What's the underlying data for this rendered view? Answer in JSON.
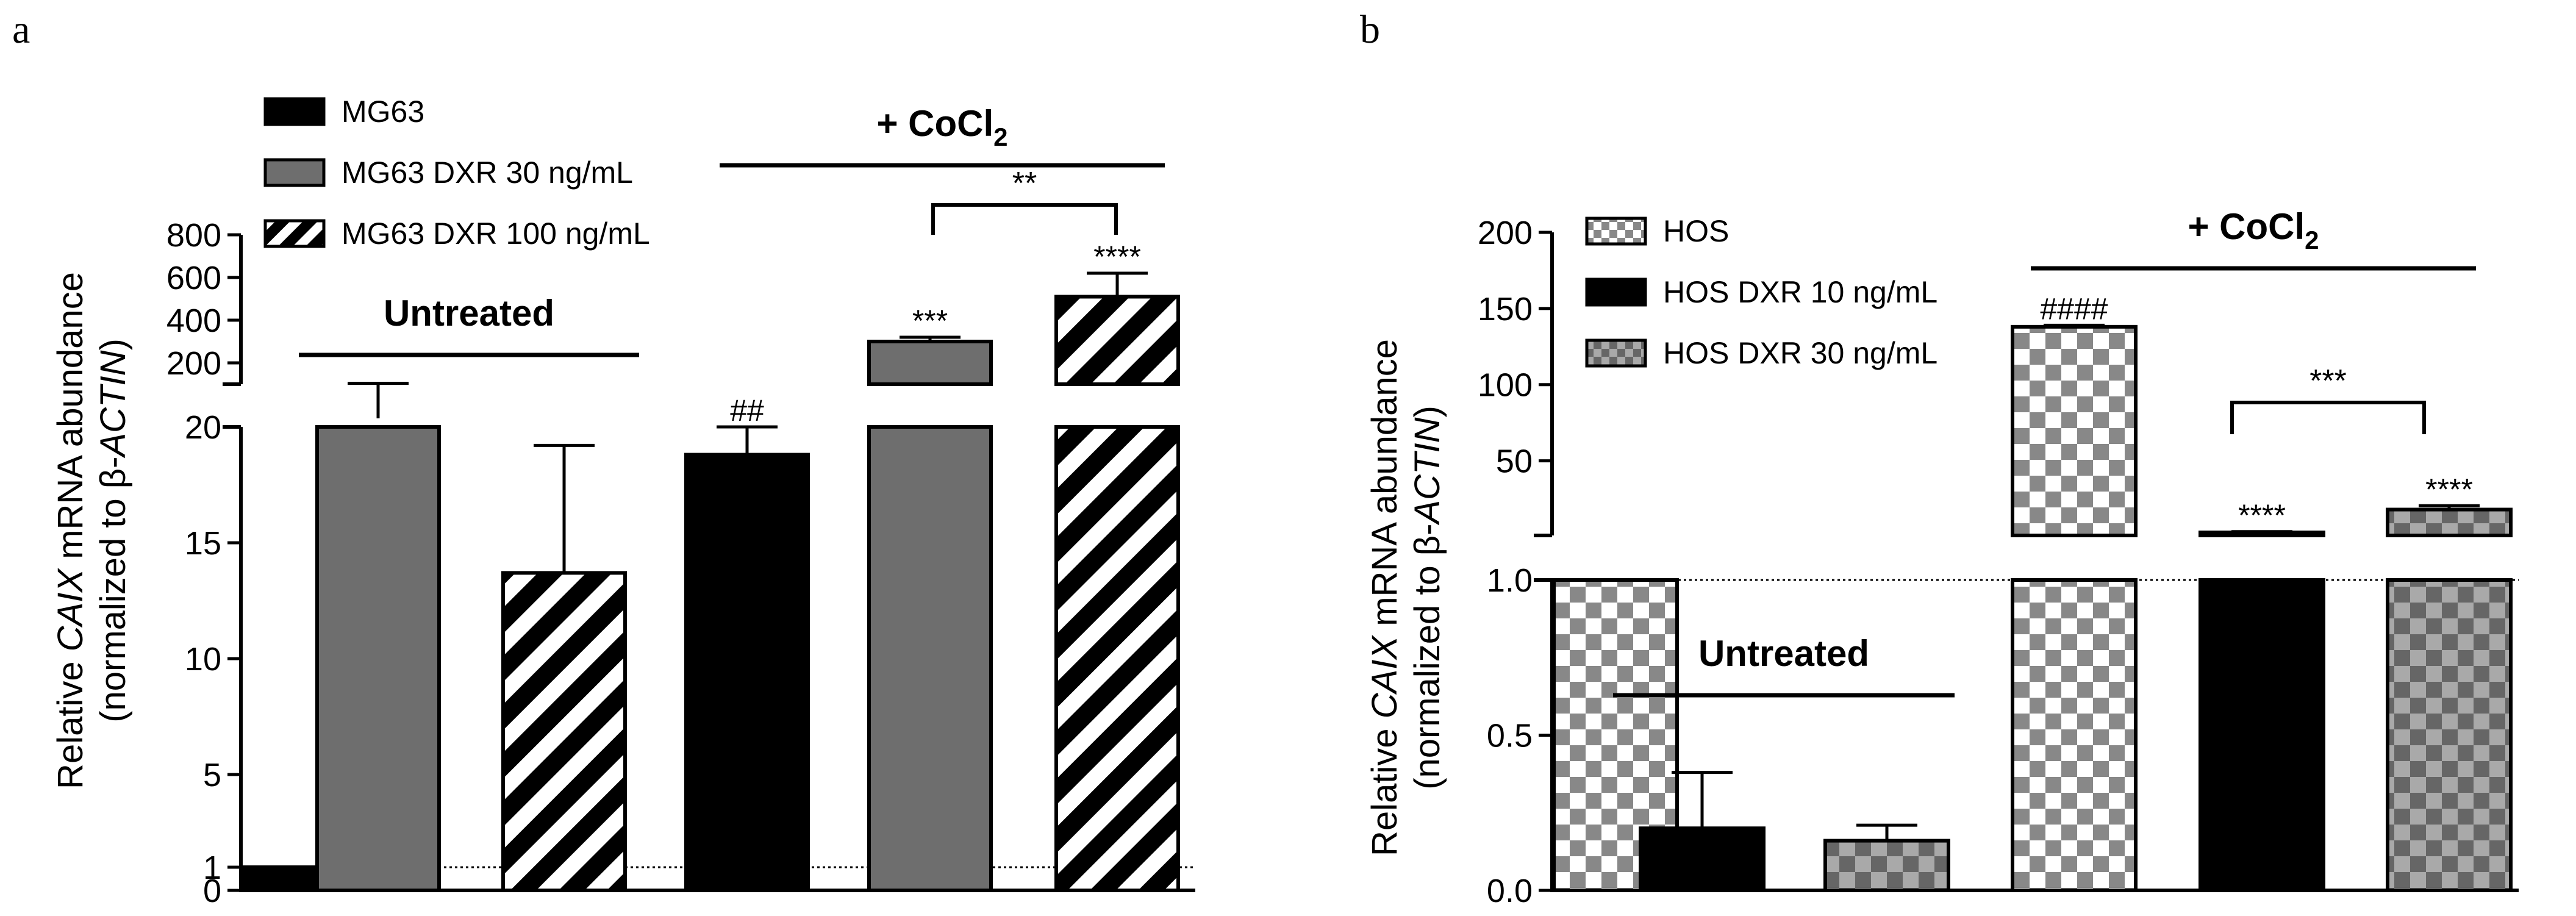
{
  "colors": {
    "black": "#000000",
    "gray": "#6e6e6e",
    "white": "#ffffff",
    "checkGray": "#888888"
  },
  "chart_data": [
    {
      "panel_label": "a",
      "type": "bar",
      "ylabel_parts": [
        "Relative ",
        "CAIX",
        " mRNA abundance"
      ],
      "ylabel_line2_parts": [
        "(normalized to β-",
        "ACTIN",
        ")"
      ],
      "y_axis": {
        "lower": {
          "range": [
            0,
            20
          ],
          "ticks": [
            "0",
            "1",
            "5",
            "10",
            "15",
            "20"
          ]
        },
        "upper": {
          "range": [
            100,
            800
          ],
          "ticks": [
            "200",
            "400",
            "600",
            "800"
          ]
        }
      },
      "reference_line": 1,
      "legend": [
        {
          "label": "MG63",
          "pattern": "black"
        },
        {
          "label": "MG63 DXR 30 ng/mL",
          "pattern": "gray"
        },
        {
          "label": "MG63 DXR 100 ng/mL",
          "pattern": "stripes"
        }
      ],
      "groups": {
        "untreated": "Untreated",
        "treated_prefix": "+ CoCl",
        "treated_sub": "2"
      },
      "bars": [
        {
          "series": "MG63",
          "condition": "Untreated",
          "value": 1,
          "error": 0,
          "pattern": "black",
          "sig": ""
        },
        {
          "series": "MG63 DXR 30 ng/mL",
          "condition": "Untreated",
          "value": 100,
          "error": 4,
          "pattern": "gray",
          "sig": ""
        },
        {
          "series": "MG63 DXR 100 ng/mL",
          "condition": "Untreated",
          "value": 13.7,
          "error": 5.5,
          "pattern": "stripes",
          "sig": ""
        },
        {
          "series": "MG63",
          "condition": "+ CoCl2",
          "value": 18.8,
          "error": 1.2,
          "pattern": "black",
          "sig": "##"
        },
        {
          "series": "MG63 DXR 30 ng/mL",
          "condition": "+ CoCl2",
          "value": 300,
          "error": 20,
          "pattern": "gray",
          "sig": "***"
        },
        {
          "series": "MG63 DXR 100 ng/mL",
          "condition": "+ CoCl2",
          "value": 510,
          "error": 110,
          "pattern": "stripes",
          "sig": "****"
        }
      ],
      "bracket": {
        "label": "**"
      }
    },
    {
      "panel_label": "b",
      "type": "bar",
      "ylabel_parts": [
        "Relative ",
        "CAIX",
        " mRNA abundance"
      ],
      "ylabel_line2_parts": [
        "(normalized to β-",
        "ACTIN",
        ")"
      ],
      "y_axis": {
        "lower": {
          "range": [
            0,
            1
          ],
          "ticks": [
            "0.0",
            "0.5",
            "1.0"
          ]
        },
        "upper": {
          "range": [
            1,
            200
          ],
          "ticks": [
            "50",
            "100",
            "150",
            "200"
          ]
        }
      },
      "reference_line": 1,
      "legend": [
        {
          "label": "HOS",
          "pattern": "check"
        },
        {
          "label": "HOS DXR 10 ng/mL",
          "pattern": "black"
        },
        {
          "label": "HOS DXR 30 ng/mL",
          "pattern": "checkgray"
        }
      ],
      "groups": {
        "untreated": "Untreated",
        "treated_prefix": "+ CoCl",
        "treated_sub": "2"
      },
      "bars": [
        {
          "series": "HOS",
          "condition": "Untreated",
          "value": 1,
          "error": 0,
          "pattern": "check",
          "sig": ""
        },
        {
          "series": "HOS DXR 10 ng/mL",
          "condition": "Untreated",
          "value": 0.2,
          "error": 0.18,
          "pattern": "black",
          "sig": ""
        },
        {
          "series": "HOS DXR 30 ng/mL",
          "condition": "Untreated",
          "value": 0.16,
          "error": 0.05,
          "pattern": "checkgray",
          "sig": ""
        },
        {
          "series": "HOS",
          "condition": "+ CoCl2",
          "value": 138,
          "error": 1,
          "pattern": "check",
          "sig": "####"
        },
        {
          "series": "HOS DXR 10 ng/mL",
          "condition": "+ CoCl2",
          "value": 3,
          "error": 0.5,
          "pattern": "black",
          "sig": "****"
        },
        {
          "series": "HOS DXR 30 ng/mL",
          "condition": "+ CoCl2",
          "value": 18,
          "error": 2.5,
          "pattern": "checkgray",
          "sig": "****"
        }
      ],
      "bracket": {
        "label": "***"
      }
    }
  ]
}
